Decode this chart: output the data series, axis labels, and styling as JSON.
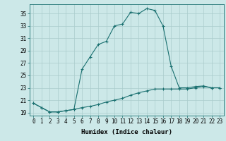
{
  "title": "",
  "xlabel": "Humidex (Indice chaleur)",
  "ylabel": "",
  "background_color": "#cce8e8",
  "grid_color": "#aacccc",
  "line_color": "#1a7070",
  "x_upper": [
    0,
    1,
    2,
    3,
    4,
    5,
    6,
    7,
    8,
    9,
    10,
    11,
    12,
    13,
    14,
    15,
    16,
    17,
    18,
    19,
    20,
    21,
    22,
    23
  ],
  "y_upper": [
    20.5,
    19.8,
    19.1,
    19.1,
    19.3,
    19.5,
    26.0,
    28.0,
    30.0,
    30.5,
    33.0,
    33.3,
    35.2,
    35.0,
    35.8,
    35.5,
    33.0,
    26.5,
    23.0,
    23.0,
    23.2,
    23.3,
    23.0,
    23.0
  ],
  "x_lower": [
    0,
    1,
    2,
    3,
    4,
    5,
    6,
    7,
    8,
    9,
    10,
    11,
    12,
    13,
    14,
    15,
    16,
    17,
    18,
    19,
    20,
    21,
    22,
    23
  ],
  "y_lower": [
    20.5,
    19.8,
    19.1,
    19.1,
    19.3,
    19.5,
    19.8,
    20.0,
    20.3,
    20.7,
    21.0,
    21.3,
    21.8,
    22.2,
    22.5,
    22.8,
    22.8,
    22.8,
    22.8,
    22.8,
    23.0,
    23.2,
    23.0,
    23.0
  ],
  "yticks": [
    19,
    21,
    23,
    25,
    27,
    29,
    31,
    33,
    35
  ],
  "ylim": [
    18.5,
    36.5
  ],
  "xlim": [
    -0.5,
    23.5
  ],
  "xtick_labels": [
    "0",
    "1",
    "2",
    "3",
    "4",
    "5",
    "6",
    "7",
    "8",
    "9",
    "10",
    "11",
    "12",
    "13",
    "14",
    "15",
    "16",
    "17",
    "18",
    "19",
    "20",
    "21",
    "22",
    "23"
  ],
  "marker": "+",
  "markersize": 3,
  "linewidth": 0.8,
  "fontsize_ticks": 5.5,
  "fontsize_label": 6.5
}
